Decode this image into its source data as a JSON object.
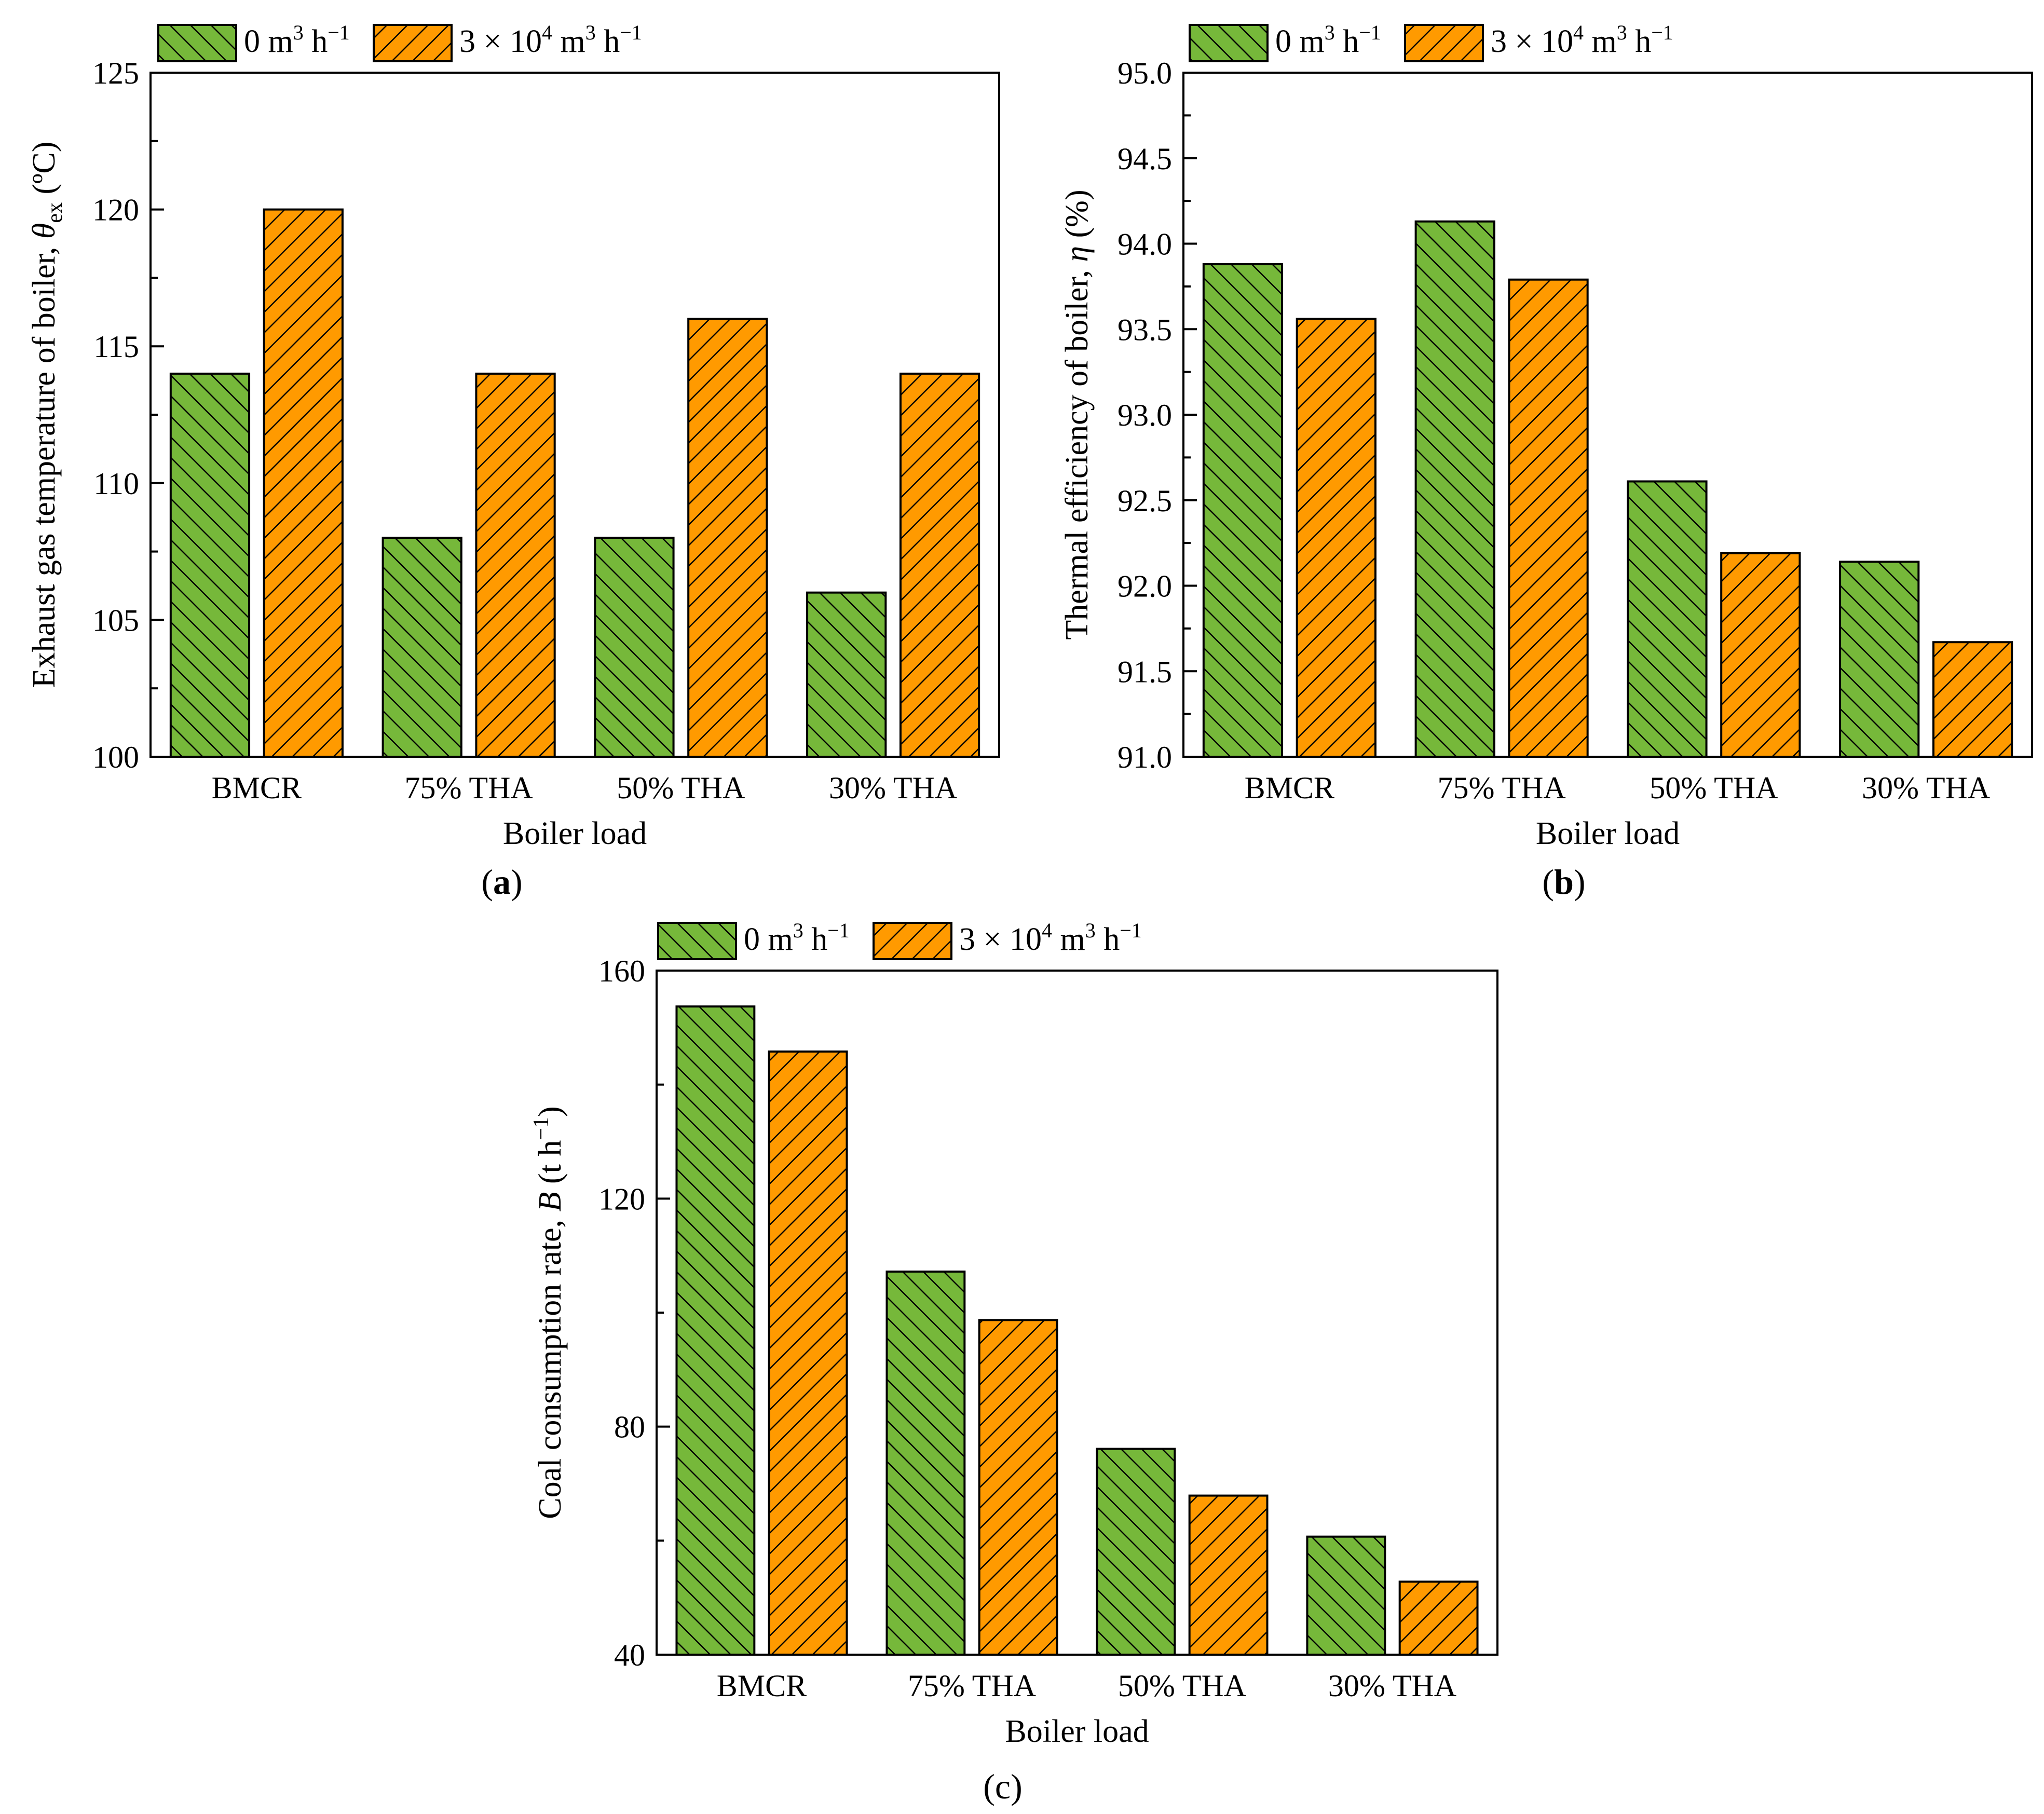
{
  "colors": {
    "series_0": "#76b83a",
    "series_1": "#ff9a00",
    "hatch": "#000000",
    "axis": "#000000"
  },
  "legend_labels": {
    "s0": {
      "base": "0 m",
      "sup1": "3",
      "mid": " h",
      "sup2": "−1"
    },
    "s1": {
      "base": "3 × 10",
      "sup1": "4",
      "mid": " m",
      "sup2": "3",
      "tail": " h",
      "sup3": "−1"
    }
  },
  "chart_data": [
    {
      "panel": "a",
      "type": "bar",
      "categories": [
        "BMCR",
        "75% THA",
        "50% THA",
        "30% THA"
      ],
      "series": [
        {
          "name": "0 m3 h−1",
          "values": [
            114,
            108,
            108,
            106
          ]
        },
        {
          "name": "3 × 104 m3 h−1",
          "values": [
            120,
            114,
            116,
            114
          ]
        }
      ],
      "xlabel": "Boiler load",
      "ylabel": {
        "main": "Exhaust gas temperature of boiler, ",
        "sym": "θ",
        "sub": "ex",
        "unit": " (ºC)"
      },
      "ylim": [
        100,
        125
      ],
      "yticks": [
        100,
        105,
        110,
        115,
        120,
        125
      ],
      "ytick_labels": [
        "100",
        "105",
        "110",
        "115",
        "120",
        "125"
      ],
      "tag": "a"
    },
    {
      "panel": "b",
      "type": "bar",
      "categories": [
        "BMCR",
        "75% THA",
        "50% THA",
        "30% THA"
      ],
      "series": [
        {
          "name": "0 m3 h−1",
          "values": [
            93.88,
            94.13,
            92.61,
            92.14
          ]
        },
        {
          "name": "3 × 104 m3 h−1",
          "values": [
            93.56,
            93.79,
            92.19,
            91.67
          ]
        }
      ],
      "xlabel": "Boiler load",
      "ylabel": {
        "main": "Thermal efficiency of boiler, ",
        "sym": "η",
        "sub": "",
        "unit": " (%)"
      },
      "ylim": [
        91.0,
        95.0
      ],
      "yticks": [
        91.0,
        91.5,
        92.0,
        92.5,
        93.0,
        93.5,
        94.0,
        94.5,
        95.0
      ],
      "ytick_labels": [
        "91.0",
        "91.5",
        "92.0",
        "92.5",
        "93.0",
        "93.5",
        "94.0",
        "94.5",
        "95.0"
      ],
      "tag": "b"
    },
    {
      "panel": "c",
      "type": "bar",
      "categories": [
        "BMCR",
        "75% THA",
        "50% THA",
        "30% THA"
      ],
      "series": [
        {
          "name": "0 m3 h−1",
          "values": [
            153.7,
            107.2,
            76.1,
            60.7
          ]
        },
        {
          "name": "3 × 104 m3 h−1",
          "values": [
            145.8,
            98.7,
            67.9,
            52.8
          ]
        }
      ],
      "xlabel": "Boiler load",
      "ylabel": {
        "main": "Coal consumption rate, ",
        "sym": "B",
        "sub": "",
        "unit": " (t h",
        "unit_sup": "−1",
        "unit_end": ")"
      },
      "ylim": [
        40,
        160
      ],
      "yticks": [
        40,
        80,
        120,
        160
      ],
      "ytick_labels": [
        "40",
        "80",
        "120",
        "160"
      ],
      "tag": "c"
    }
  ]
}
